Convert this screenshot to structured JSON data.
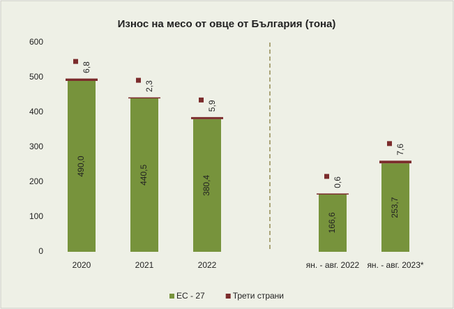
{
  "chart_data": {
    "type": "stacked_bar",
    "title": "Износ на месо от овце от България (тона)",
    "categories": [
      "2020",
      "2021",
      "2022",
      null,
      "ян. - авг. 2022",
      "ян. - авг. 2023*"
    ],
    "series": [
      {
        "name": "ЕС - 27",
        "color": "#77933c",
        "values": [
          490.0,
          440.5,
          380.4,
          null,
          166.6,
          253.7
        ],
        "value_labels": [
          "490,0",
          "440,5",
          "380,4",
          null,
          "166,6",
          "253,7"
        ]
      },
      {
        "name": "Трети страни",
        "color": "#7b2c2c",
        "values": [
          6.8,
          2.3,
          5.9,
          null,
          0.6,
          7.6
        ],
        "value_labels": [
          "6,8",
          "2,3",
          "5,9",
          null,
          "0,6",
          "7,6"
        ]
      }
    ],
    "ylim": [
      0,
      600
    ],
    "yticks": [
      0,
      100,
      200,
      300,
      400,
      500,
      600
    ],
    "grid": false,
    "legend": "bottom"
  }
}
